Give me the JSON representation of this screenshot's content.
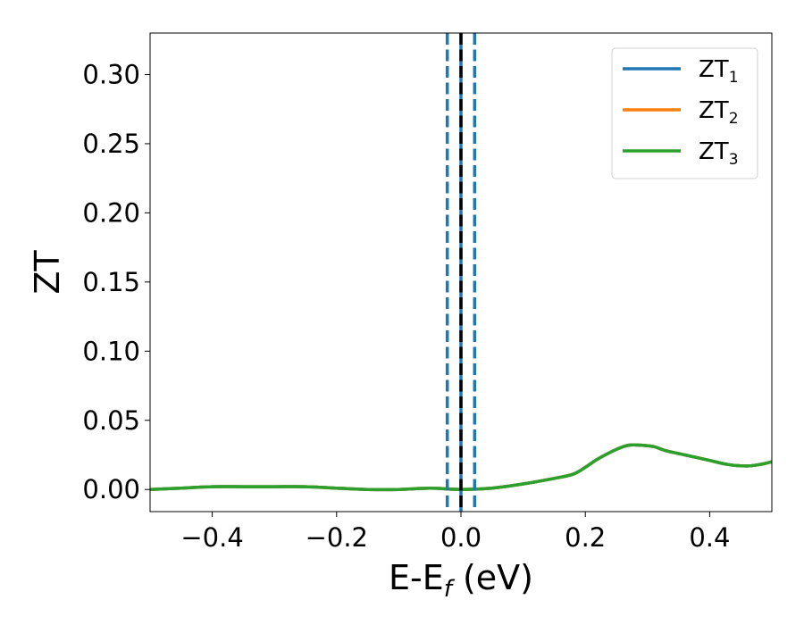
{
  "chart_data": {
    "type": "line",
    "title": "",
    "xlabel": "E-E",
    "xlabel_sub": "f",
    "xlabel_unit": " (eV)",
    "ylabel": "ZT",
    "xlim": [
      -0.5,
      0.5
    ],
    "ylim": [
      -0.016,
      0.33
    ],
    "grid": false,
    "legend_position": "top-right",
    "x_ticks": [
      -0.4,
      -0.2,
      0.0,
      0.2,
      0.4
    ],
    "x_tick_labels": [
      "−0.4",
      "−0.2",
      "0.0",
      "0.2",
      "0.4"
    ],
    "y_ticks": [
      0.0,
      0.05,
      0.1,
      0.15,
      0.2,
      0.25,
      0.3
    ],
    "y_tick_labels": [
      "0.00",
      "0.05",
      "0.10",
      "0.15",
      "0.20",
      "0.25",
      "0.30"
    ],
    "series": [
      {
        "name": "ZT",
        "sub": "1",
        "color": "#1f77b4",
        "x": [
          -0.5,
          -0.45,
          -0.4,
          -0.35,
          -0.3,
          -0.25,
          -0.2,
          -0.15,
          -0.1,
          -0.05,
          0.0,
          0.05,
          0.1,
          0.15,
          0.18,
          0.2,
          0.22,
          0.25,
          0.27,
          0.29,
          0.31,
          0.33,
          0.36,
          0.4,
          0.43,
          0.46,
          0.48,
          0.5
        ],
        "y": [
          0.0,
          0.001,
          0.002,
          0.002,
          0.002,
          0.002,
          0.001,
          0.0,
          0.0,
          0.001,
          0.0,
          0.001,
          0.004,
          0.008,
          0.011,
          0.016,
          0.022,
          0.029,
          0.032,
          0.032,
          0.031,
          0.028,
          0.025,
          0.021,
          0.018,
          0.017,
          0.018,
          0.02
        ]
      },
      {
        "name": "ZT",
        "sub": "2",
        "color": "#ff7f0e",
        "x": [
          -0.5,
          -0.45,
          -0.4,
          -0.35,
          -0.3,
          -0.25,
          -0.2,
          -0.15,
          -0.1,
          -0.05,
          0.0,
          0.05,
          0.1,
          0.15,
          0.18,
          0.2,
          0.22,
          0.25,
          0.27,
          0.29,
          0.31,
          0.33,
          0.36,
          0.4,
          0.43,
          0.46,
          0.48,
          0.5
        ],
        "y": [
          0.0,
          0.001,
          0.002,
          0.002,
          0.002,
          0.002,
          0.001,
          0.0,
          0.0,
          0.001,
          0.0,
          0.001,
          0.004,
          0.008,
          0.011,
          0.016,
          0.022,
          0.029,
          0.032,
          0.032,
          0.031,
          0.028,
          0.025,
          0.021,
          0.018,
          0.017,
          0.018,
          0.02
        ]
      },
      {
        "name": "ZT",
        "sub": "3",
        "color": "#2ca02c",
        "x": [
          -0.5,
          -0.45,
          -0.4,
          -0.35,
          -0.3,
          -0.25,
          -0.2,
          -0.15,
          -0.1,
          -0.05,
          0.0,
          0.05,
          0.1,
          0.15,
          0.18,
          0.2,
          0.22,
          0.25,
          0.27,
          0.29,
          0.31,
          0.33,
          0.36,
          0.4,
          0.43,
          0.46,
          0.48,
          0.5
        ],
        "y": [
          0.0,
          0.001,
          0.002,
          0.002,
          0.002,
          0.002,
          0.001,
          0.0,
          0.0,
          0.001,
          0.0,
          0.001,
          0.004,
          0.008,
          0.011,
          0.016,
          0.022,
          0.029,
          0.032,
          0.032,
          0.031,
          0.028,
          0.025,
          0.021,
          0.018,
          0.017,
          0.018,
          0.02
        ]
      }
    ],
    "vlines": [
      {
        "x": -0.022,
        "style": "dashed",
        "color": "#1f77b4"
      },
      {
        "x": 0.022,
        "style": "dashed",
        "color": "#1f77b4"
      },
      {
        "x": 0.0,
        "style": "solid",
        "color": "#1f77b4"
      },
      {
        "x": 0.0,
        "style": "dashed",
        "color": "#000000"
      }
    ]
  }
}
